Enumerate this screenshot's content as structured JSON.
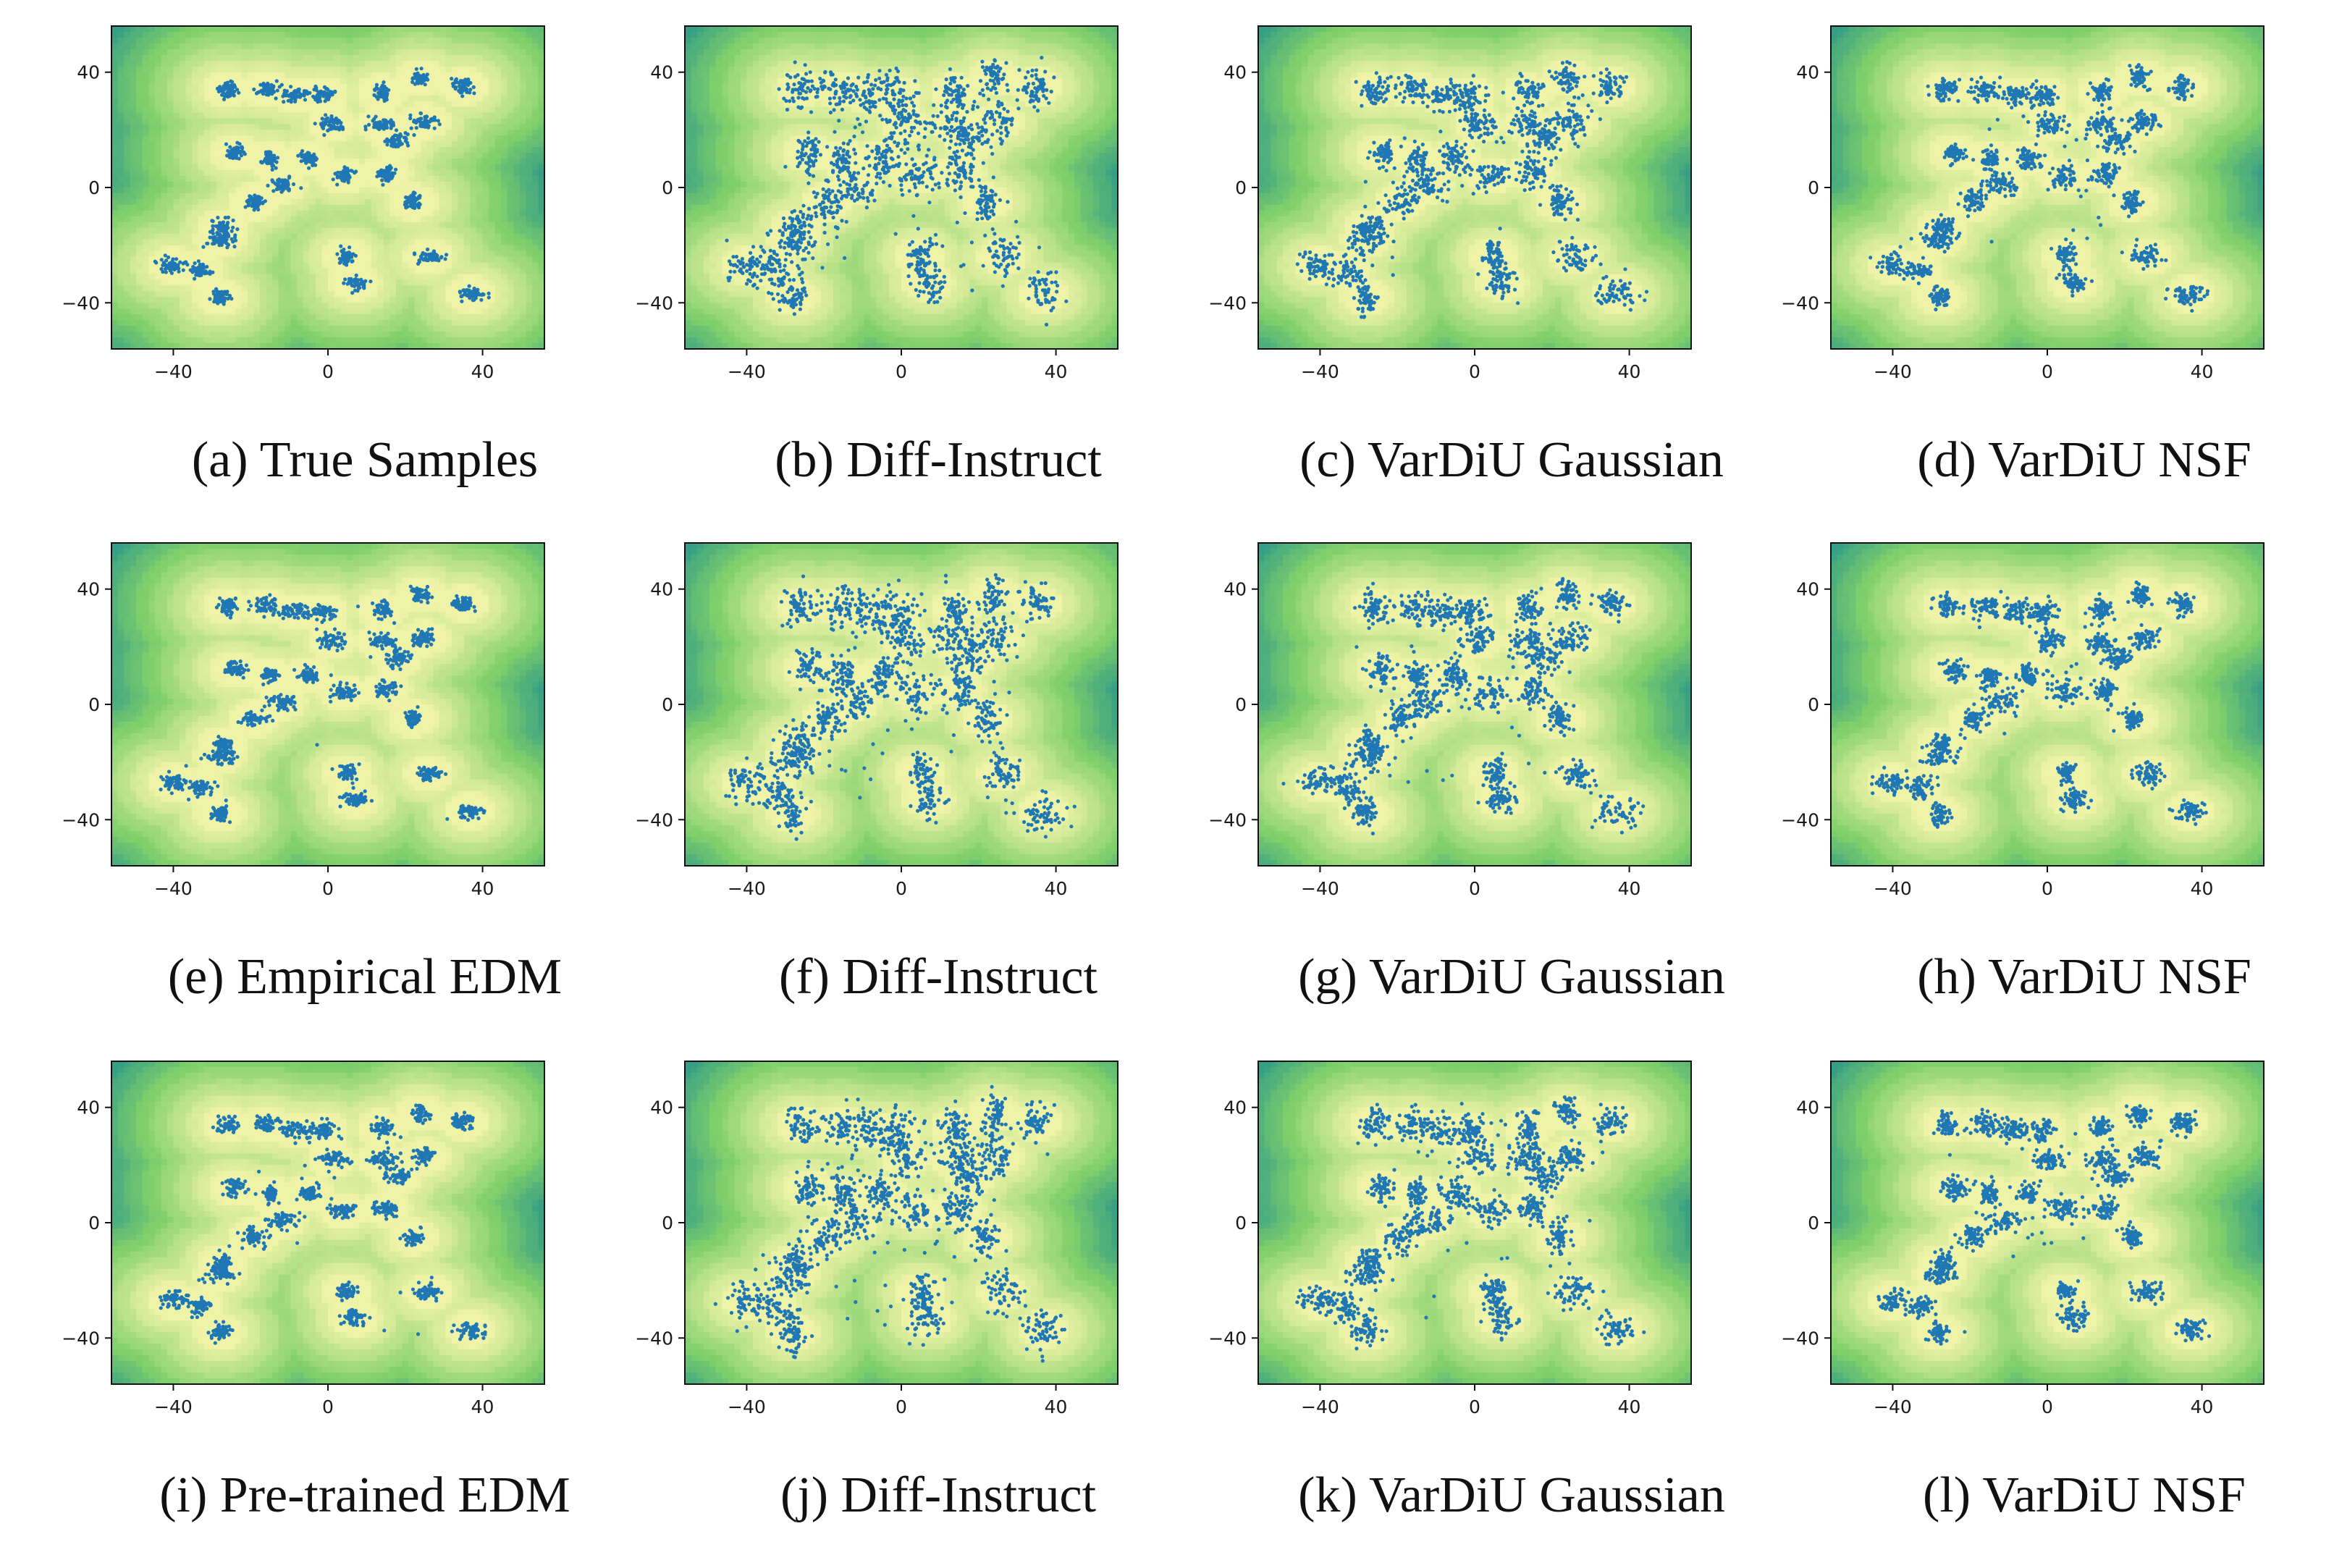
{
  "colors": {
    "contour_low": "#fde725",
    "contour_high": "#440154",
    "background_low": "#eef3a7",
    "background_high": "#3b528b",
    "samples": "#1f77b4"
  },
  "captions": [
    "(a) True Samples",
    "(b) Diff-Instruct",
    "(c) VarDiU Gaussian",
    "(d) VarDiU NSF",
    "(e) Empirical EDM",
    "(f) Diff-Instruct",
    "(g) VarDiU Gaussian",
    "(h) VarDiU NSF",
    "(i) Pre-trained EDM",
    "(j) Diff-Instruct",
    "(k) VarDiU Gaussian",
    "(l) VarDiU NSF"
  ],
  "chart_data": [
    {
      "type": "scatter",
      "xlim": [
        -56,
        56
      ],
      "ylim": [
        -56,
        56
      ],
      "xticks": [
        "−40",
        "0",
        "40"
      ],
      "yticks": [
        "40",
        "0",
        "−40"
      ],
      "xtick_values": [
        -40,
        0,
        40
      ],
      "ytick_values": [
        40,
        0,
        -40
      ],
      "background": "contour",
      "grid": false,
      "samples": "true-samples",
      "caption": "(a) True Samples"
    },
    {
      "type": "scatter",
      "xlim": [
        -56,
        56
      ],
      "ylim": [
        -56,
        56
      ],
      "xticks": [
        "−40",
        "0",
        "40"
      ],
      "yticks": [
        "40",
        "0",
        "−40"
      ],
      "xtick_values": [
        -40,
        0,
        40
      ],
      "ytick_values": [
        40,
        0,
        -40
      ],
      "background": "contour",
      "grid": false,
      "samples": "diff-instruct",
      "caption": "(b) Diff-Instruct"
    },
    {
      "type": "scatter",
      "xlim": [
        -56,
        56
      ],
      "ylim": [
        -56,
        56
      ],
      "xticks": [
        "−40",
        "0",
        "40"
      ],
      "yticks": [
        "40",
        "0",
        "−40"
      ],
      "xtick_values": [
        -40,
        0,
        40
      ],
      "ytick_values": [
        40,
        0,
        -40
      ],
      "background": "contour",
      "grid": false,
      "samples": "vardiu-gaussian",
      "caption": "(c) VarDiU Gaussian"
    },
    {
      "type": "scatter",
      "xlim": [
        -56,
        56
      ],
      "ylim": [
        -56,
        56
      ],
      "xticks": [
        "−40",
        "0",
        "40"
      ],
      "yticks": [
        "40",
        "0",
        "−40"
      ],
      "xtick_values": [
        -40,
        0,
        40
      ],
      "ytick_values": [
        40,
        0,
        -40
      ],
      "background": "contour",
      "grid": false,
      "samples": "vardiu-nsf",
      "caption": "(d) VarDiU NSF"
    },
    {
      "type": "scatter",
      "xlim": [
        -56,
        56
      ],
      "ylim": [
        -56,
        56
      ],
      "xticks": [
        "−40",
        "0",
        "40"
      ],
      "yticks": [
        "40",
        "0",
        "−40"
      ],
      "xtick_values": [
        -40,
        0,
        40
      ],
      "ytick_values": [
        40,
        0,
        -40
      ],
      "background": "contour",
      "grid": false,
      "samples": "empirical-edm",
      "caption": "(e) Empirical EDM"
    },
    {
      "type": "scatter",
      "xlim": [
        -56,
        56
      ],
      "ylim": [
        -56,
        56
      ],
      "xticks": [
        "−40",
        "0",
        "40"
      ],
      "yticks": [
        "40",
        "0",
        "−40"
      ],
      "xtick_values": [
        -40,
        0,
        40
      ],
      "ytick_values": [
        40,
        0,
        -40
      ],
      "background": "contour",
      "grid": false,
      "samples": "diff-instruct",
      "caption": "(f) Diff-Instruct"
    },
    {
      "type": "scatter",
      "xlim": [
        -56,
        56
      ],
      "ylim": [
        -56,
        56
      ],
      "xticks": [
        "−40",
        "0",
        "40"
      ],
      "yticks": [
        "40",
        "0",
        "−40"
      ],
      "xtick_values": [
        -40,
        0,
        40
      ],
      "ytick_values": [
        40,
        0,
        -40
      ],
      "background": "contour",
      "grid": false,
      "samples": "vardiu-gaussian",
      "caption": "(g) VarDiU Gaussian"
    },
    {
      "type": "scatter",
      "xlim": [
        -56,
        56
      ],
      "ylim": [
        -56,
        56
      ],
      "xticks": [
        "−40",
        "0",
        "40"
      ],
      "yticks": [
        "40",
        "0",
        "−40"
      ],
      "xtick_values": [
        -40,
        0,
        40
      ],
      "ytick_values": [
        40,
        0,
        -40
      ],
      "background": "contour",
      "grid": false,
      "samples": "vardiu-nsf",
      "caption": "(h) VarDiU NSF"
    },
    {
      "type": "scatter",
      "xlim": [
        -56,
        56
      ],
      "ylim": [
        -56,
        56
      ],
      "xticks": [
        "−40",
        "0",
        "40"
      ],
      "yticks": [
        "40",
        "0",
        "−40"
      ],
      "xtick_values": [
        -40,
        0,
        40
      ],
      "ytick_values": [
        40,
        0,
        -40
      ],
      "background": "contour",
      "grid": false,
      "samples": "pretrained-edm",
      "caption": "(i) Pre-trained EDM"
    },
    {
      "type": "scatter",
      "xlim": [
        -56,
        56
      ],
      "ylim": [
        -56,
        56
      ],
      "xticks": [
        "−40",
        "0",
        "40"
      ],
      "yticks": [
        "40",
        "0",
        "−40"
      ],
      "xtick_values": [
        -40,
        0,
        40
      ],
      "ytick_values": [
        40,
        0,
        -40
      ],
      "background": "contour",
      "grid": false,
      "samples": "diff-instruct",
      "caption": "(j) Diff-Instruct"
    },
    {
      "type": "scatter",
      "xlim": [
        -56,
        56
      ],
      "ylim": [
        -56,
        56
      ],
      "xticks": [
        "−40",
        "0",
        "40"
      ],
      "yticks": [
        "40",
        "0",
        "−40"
      ],
      "xtick_values": [
        -40,
        0,
        40
      ],
      "ytick_values": [
        40,
        0,
        -40
      ],
      "background": "contour",
      "grid": false,
      "samples": "vardiu-gaussian",
      "caption": "(k) VarDiU Gaussian"
    },
    {
      "type": "scatter",
      "xlim": [
        -56,
        56
      ],
      "ylim": [
        -56,
        56
      ],
      "xticks": [
        "−40",
        "0",
        "40"
      ],
      "yticks": [
        "40",
        "0",
        "−40"
      ],
      "xtick_values": [
        -40,
        0,
        40
      ],
      "ytick_values": [
        40,
        0,
        -40
      ],
      "background": "contour",
      "grid": false,
      "samples": "vardiu-nsf",
      "caption": "(l) VarDiU NSF"
    }
  ],
  "mixture_components": [
    {
      "x": -26,
      "y": 34
    },
    {
      "x": -16,
      "y": 34
    },
    {
      "x": -8,
      "y": 32
    },
    {
      "x": -1,
      "y": 32
    },
    {
      "x": 14,
      "y": 33
    },
    {
      "x": 24,
      "y": 38
    },
    {
      "x": 35,
      "y": 35
    },
    {
      "x": 1,
      "y": 22
    },
    {
      "x": 14,
      "y": 22
    },
    {
      "x": 25,
      "y": 23
    },
    {
      "x": -24,
      "y": 12
    },
    {
      "x": -15,
      "y": 10
    },
    {
      "x": -5,
      "y": 10
    },
    {
      "x": 18,
      "y": 16
    },
    {
      "x": -12,
      "y": 1
    },
    {
      "x": 4,
      "y": 4
    },
    {
      "x": 15,
      "y": 5
    },
    {
      "x": 22,
      "y": -5
    },
    {
      "x": -27,
      "y": -14
    },
    {
      "x": -19,
      "y": -5
    },
    {
      "x": -28,
      "y": -18
    },
    {
      "x": -40,
      "y": -27
    },
    {
      "x": -33,
      "y": -29
    },
    {
      "x": -28,
      "y": -38
    },
    {
      "x": 5,
      "y": -24
    },
    {
      "x": 7,
      "y": -33
    },
    {
      "x": 26,
      "y": -24
    },
    {
      "x": 37,
      "y": -37
    }
  ]
}
